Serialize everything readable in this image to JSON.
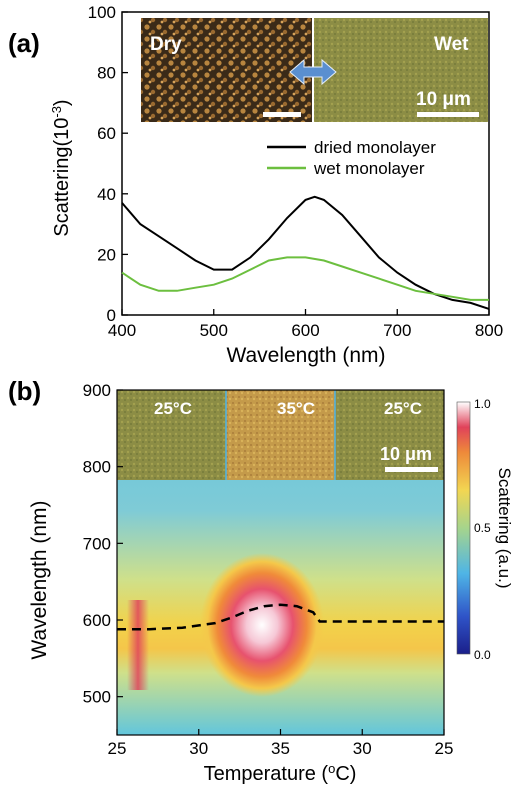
{
  "panel_a": {
    "label": "(a)",
    "inset_dry": "Dry",
    "inset_wet": "Wet",
    "inset_scale": "10 μm",
    "ylabel_main": "Scattering(10",
    "ylabel_exp": "-3",
    "ylabel_close": ")",
    "xlabel": "Wavelength (nm)"
  },
  "panel_b": {
    "label": "(b)",
    "inset_labels": [
      "25°C",
      "35°C",
      "25°C"
    ],
    "inset_scale": "10 μm",
    "ylabel": "Wavelength (nm)",
    "xlabel_main": "Temperature (",
    "xlabel_sup": "o",
    "xlabel_close": "C)",
    "colorbar_label": "Scattering (a.u.)",
    "colorbar_ticks": [
      "1.0",
      "0.5",
      "0.0"
    ]
  },
  "colors": {
    "dried": "#000000",
    "wet": "#6cbf3f",
    "dashed": "#000000"
  },
  "chart_data": [
    {
      "type": "line",
      "title": "",
      "xlabel": "Wavelength (nm)",
      "ylabel": "Scattering(10-3)",
      "xlim": [
        400,
        800
      ],
      "ylim": [
        0,
        100
      ],
      "xticks": [
        400,
        500,
        600,
        700,
        800
      ],
      "yticks": [
        0,
        20,
        40,
        60,
        80,
        100
      ],
      "legend_position": "middle-right",
      "series": [
        {
          "name": "dried monolayer",
          "x": [
            400,
            420,
            440,
            460,
            480,
            500,
            520,
            540,
            560,
            580,
            600,
            610,
            620,
            640,
            660,
            680,
            700,
            720,
            740,
            760,
            780,
            800
          ],
          "y": [
            37,
            30,
            26,
            22,
            18,
            15,
            15,
            19,
            25,
            32,
            38,
            39,
            38,
            33,
            26,
            19,
            14,
            10,
            7,
            5,
            4,
            2
          ]
        },
        {
          "name": "wet monolayer",
          "x": [
            400,
            420,
            440,
            460,
            480,
            500,
            520,
            540,
            560,
            580,
            600,
            620,
            640,
            660,
            680,
            700,
            720,
            740,
            760,
            780,
            800
          ],
          "y": [
            14,
            10,
            8,
            8,
            9,
            10,
            12,
            15,
            18,
            19,
            19,
            18,
            16,
            14,
            12,
            10,
            8,
            7,
            6,
            5,
            5
          ]
        }
      ]
    },
    {
      "type": "heatmap",
      "title": "",
      "xlabel": "Temperature (oC)",
      "ylabel": "Wavelength (nm)",
      "xtick_labels": [
        "25",
        "30",
        "35",
        "30",
        "25"
      ],
      "yticks": [
        500,
        600,
        700,
        800,
        900
      ],
      "ylim": [
        450,
        900
      ],
      "colorbar": {
        "label": "Scattering (a.u.)",
        "ticks": [
          0.0,
          0.5,
          1.0
        ]
      },
      "dashed_peak": {
        "x": [
          0,
          0.1,
          0.2,
          0.3,
          0.35,
          0.4,
          0.45,
          0.5,
          0.55,
          0.6,
          0.62,
          0.65,
          0.7,
          0.8,
          0.9,
          1.0
        ],
        "y": [
          588,
          588,
          590,
          596,
          603,
          612,
          618,
          620,
          618,
          610,
          598,
          598,
          598,
          598,
          598,
          598
        ]
      }
    }
  ]
}
